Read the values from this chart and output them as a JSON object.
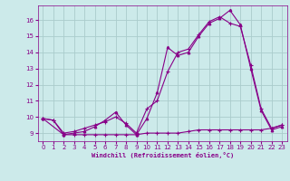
{
  "xlabel": "Windchill (Refroidissement éolien,°C)",
  "bg_color": "#cceaea",
  "grid_color": "#aacccc",
  "line_color": "#880088",
  "xlim": [
    -0.5,
    23.5
  ],
  "ylim": [
    8.5,
    16.9
  ],
  "yticks": [
    9,
    10,
    11,
    12,
    13,
    14,
    15,
    16
  ],
  "xticks": [
    0,
    1,
    2,
    3,
    4,
    5,
    6,
    7,
    8,
    9,
    10,
    11,
    12,
    13,
    14,
    15,
    16,
    17,
    18,
    19,
    20,
    21,
    22,
    23
  ],
  "s1_x": [
    0,
    1,
    2,
    3,
    4,
    5,
    6,
    7,
    8,
    9,
    10,
    11,
    12,
    13,
    14,
    15,
    16,
    17,
    18,
    19,
    20,
    21,
    22,
    23
  ],
  "s1_y": [
    9.9,
    9.8,
    8.9,
    8.9,
    8.9,
    8.9,
    8.9,
    8.9,
    8.9,
    8.9,
    9.0,
    9.0,
    9.0,
    9.0,
    9.1,
    9.2,
    9.2,
    9.2,
    9.2,
    9.2,
    9.2,
    9.2,
    9.3,
    9.5
  ],
  "s2_x": [
    0,
    1,
    2,
    3,
    4,
    5,
    6,
    7,
    8,
    9,
    10,
    11,
    12,
    13,
    14,
    15,
    16,
    17,
    18,
    19,
    20,
    21,
    22,
    23
  ],
  "s2_y": [
    9.9,
    9.8,
    9.0,
    9.1,
    9.3,
    9.5,
    9.7,
    10.0,
    9.6,
    9.0,
    10.5,
    11.0,
    12.8,
    14.0,
    14.2,
    15.1,
    15.9,
    16.2,
    15.8,
    15.6,
    13.2,
    10.5,
    9.3,
    9.5
  ],
  "s3_x": [
    0,
    2,
    3,
    4,
    5,
    6,
    7,
    8,
    9,
    10,
    11,
    12,
    13,
    14,
    15,
    16,
    17,
    18,
    19,
    20,
    21,
    22,
    23
  ],
  "s3_y": [
    9.9,
    8.9,
    9.0,
    9.1,
    9.4,
    9.8,
    10.3,
    9.5,
    8.9,
    9.9,
    11.5,
    14.3,
    13.8,
    14.0,
    15.0,
    15.8,
    16.1,
    16.6,
    15.7,
    13.0,
    10.4,
    9.2,
    9.4
  ]
}
